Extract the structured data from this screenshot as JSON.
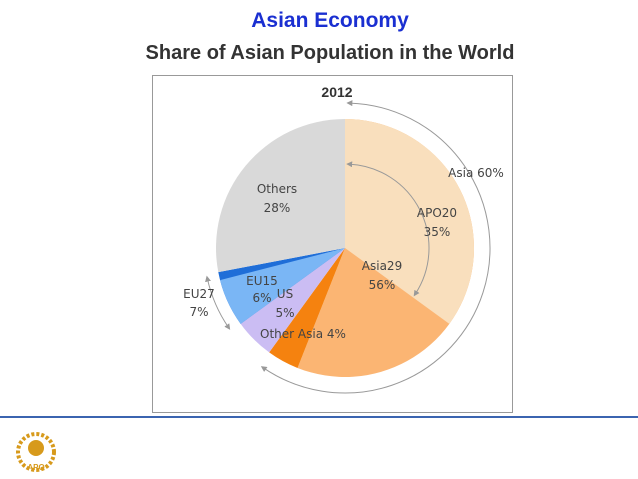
{
  "title": "Asian Economy",
  "subtitle": "Share of Asian Population in the World",
  "logo": {
    "text": "APO"
  },
  "chart_data": {
    "type": "pie",
    "title": "2012",
    "slices": [
      {
        "name": "Asia",
        "value": 60,
        "value_label": "60%",
        "children": [
          {
            "name": "Asia29",
            "value": 56,
            "value_label": "56%",
            "color": "#fbb573",
            "children": [
              {
                "name": "APO20",
                "value": 35,
                "value_label": "35%",
                "color": "#f9dfbd"
              }
            ]
          },
          {
            "name": "Other Asia",
            "value": 4,
            "value_label": "4%",
            "color": "#f5820f"
          }
        ]
      },
      {
        "name": "US",
        "value": 5,
        "value_label": "5%",
        "color": "#cbbdf3"
      },
      {
        "name": "EU27",
        "value": 7,
        "value_label": "7%",
        "color": "#1f6ed8",
        "children": [
          {
            "name": "EU15",
            "value": 6,
            "value_label": "6%",
            "color": "#7ab6f5"
          }
        ]
      },
      {
        "name": "Others",
        "value": 28,
        "value_label": "28%",
        "color": "#d9d9d9"
      }
    ]
  }
}
